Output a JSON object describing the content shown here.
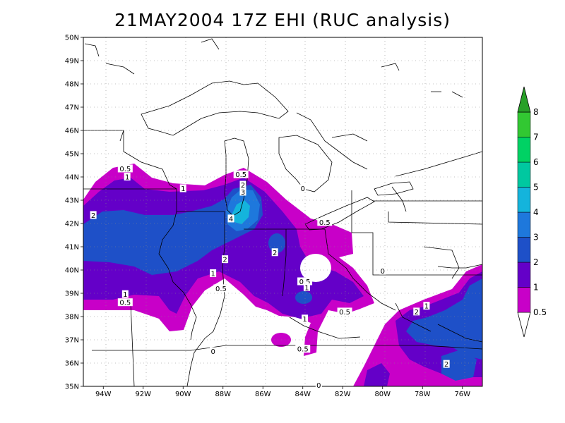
{
  "title": "21MAY2004 17Z EHI (RUC analysis)",
  "lat_labels": [
    "50N",
    "49N",
    "48N",
    "47N",
    "46N",
    "45N",
    "44N",
    "43N",
    "42N",
    "41N",
    "40N",
    "39N",
    "38N",
    "37N",
    "36N",
    "35N"
  ],
  "lon_labels": [
    "94W",
    "92W",
    "90W",
    "88W",
    "86W",
    "84W",
    "82W",
    "80W",
    "78W",
    "76W"
  ],
  "colorbar": {
    "labels": [
      "0.5",
      "1",
      "2",
      "3",
      "4",
      "5",
      "6",
      "7",
      "8"
    ],
    "colors": [
      "#c800c8",
      "#6400c8",
      "#1e50c8",
      "#1e78dc",
      "#14b4dc",
      "#00c8a0",
      "#00d264",
      "#32c832",
      "#28a028"
    ]
  },
  "contour_labels": [
    {
      "text": "0.5",
      "lon": -92.9,
      "lat": 44.35
    },
    {
      "text": "1",
      "lon": -92.8,
      "lat": 44.0
    },
    {
      "text": "1",
      "lon": -90.0,
      "lat": 43.5
    },
    {
      "text": "0.5",
      "lon": -87.1,
      "lat": 44.1
    },
    {
      "text": "2",
      "lon": -87.0,
      "lat": 43.65
    },
    {
      "text": "3",
      "lon": -87.0,
      "lat": 43.35
    },
    {
      "text": "4",
      "lon": -87.6,
      "lat": 42.2
    },
    {
      "text": "2",
      "lon": -94.5,
      "lat": 42.35
    },
    {
      "text": "0",
      "lon": -84.0,
      "lat": 43.5
    },
    {
      "text": "0.5",
      "lon": -82.9,
      "lat": 42.05
    },
    {
      "text": "2",
      "lon": -85.4,
      "lat": 40.75
    },
    {
      "text": "2",
      "lon": -87.9,
      "lat": 40.45
    },
    {
      "text": "1",
      "lon": -88.5,
      "lat": 39.85
    },
    {
      "text": "0.5",
      "lon": -88.1,
      "lat": 39.2
    },
    {
      "text": "0.5",
      "lon": -83.9,
      "lat": 39.5
    },
    {
      "text": "1",
      "lon": -83.8,
      "lat": 39.25
    },
    {
      "text": "1",
      "lon": -92.9,
      "lat": 38.95
    },
    {
      "text": "0.5",
      "lon": -92.9,
      "lat": 38.6
    },
    {
      "text": "0.5",
      "lon": -81.9,
      "lat": 38.2
    },
    {
      "text": "1",
      "lon": -83.9,
      "lat": 37.9
    },
    {
      "text": "0",
      "lon": -80.0,
      "lat": 39.95
    },
    {
      "text": "2",
      "lon": -78.3,
      "lat": 38.2
    },
    {
      "text": "1",
      "lon": -77.8,
      "lat": 38.45
    },
    {
      "text": "0",
      "lon": -88.5,
      "lat": 36.5
    },
    {
      "text": "0.5",
      "lon": -84.0,
      "lat": 36.6
    },
    {
      "text": "2",
      "lon": -76.8,
      "lat": 35.95
    },
    {
      "text": "0",
      "lon": -83.2,
      "lat": 35.05
    }
  ]
}
